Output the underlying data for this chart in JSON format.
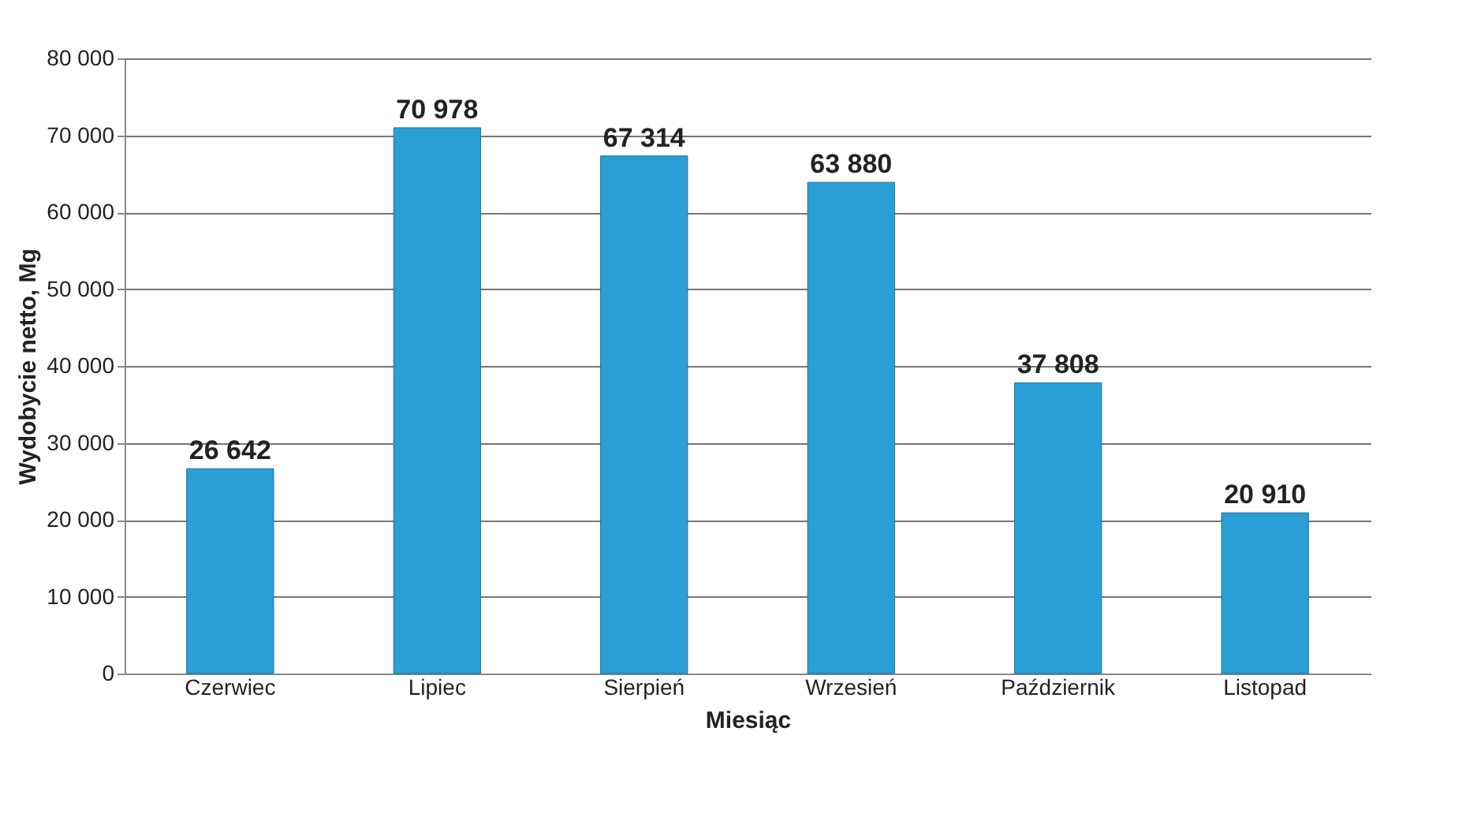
{
  "chart_data": {
    "type": "bar",
    "xlabel": "Miesiąc",
    "ylabel": "Wydobycie netto, Mg",
    "categories": [
      "Czerwiec",
      "Lipiec",
      "Sierpień",
      "Wrzesień",
      "Październik",
      "Listopad"
    ],
    "values": [
      26642,
      70978,
      67314,
      63880,
      37808,
      20910
    ],
    "value_labels": [
      "26 642",
      "70 978",
      "67 314",
      "63 880",
      "37 808",
      "20 910"
    ],
    "color": "#2a9fd6",
    "ylim": [
      0,
      80000
    ],
    "yticks": [
      {
        "value": 0,
        "label": "0"
      },
      {
        "value": 10000,
        "label": "10 000"
      },
      {
        "value": 20000,
        "label": "20 000"
      },
      {
        "value": 30000,
        "label": "30 000"
      },
      {
        "value": 40000,
        "label": "40 000"
      },
      {
        "value": 50000,
        "label": "50 000"
      },
      {
        "value": 60000,
        "label": "60 000"
      },
      {
        "value": 70000,
        "label": "70 000"
      },
      {
        "value": 80000,
        "label": "80 000"
      }
    ],
    "grid": "y"
  }
}
